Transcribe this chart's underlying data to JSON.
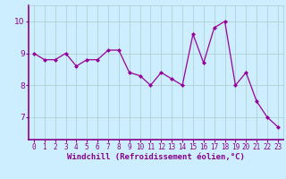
{
  "x": [
    0,
    1,
    2,
    3,
    4,
    5,
    6,
    7,
    8,
    9,
    10,
    11,
    12,
    13,
    14,
    15,
    16,
    17,
    18,
    19,
    20,
    21,
    22,
    23
  ],
  "y": [
    9.0,
    8.8,
    8.8,
    9.0,
    8.6,
    8.8,
    8.8,
    9.1,
    9.1,
    8.4,
    8.3,
    8.0,
    8.4,
    8.2,
    8.0,
    9.6,
    8.7,
    9.8,
    10.0,
    8.0,
    8.4,
    7.5,
    7.0,
    6.7
  ],
  "line_color": "#990099",
  "marker": "D",
  "marker_size": 2.0,
  "linewidth": 0.9,
  "xlabel": "Windchill (Refroidissement éolien,°C)",
  "xlabel_fontsize": 6.5,
  "bg_color": "#cceeff",
  "grid_color": "#aacccc",
  "yticks": [
    7,
    8,
    9,
    10
  ],
  "ylim": [
    6.3,
    10.5
  ],
  "xlim": [
    -0.5,
    23.5
  ],
  "xtick_fontsize": 5.5,
  "ytick_fontsize": 6.5,
  "tick_color": "#880088",
  "label_color": "#880088",
  "spine_color": "#880088"
}
